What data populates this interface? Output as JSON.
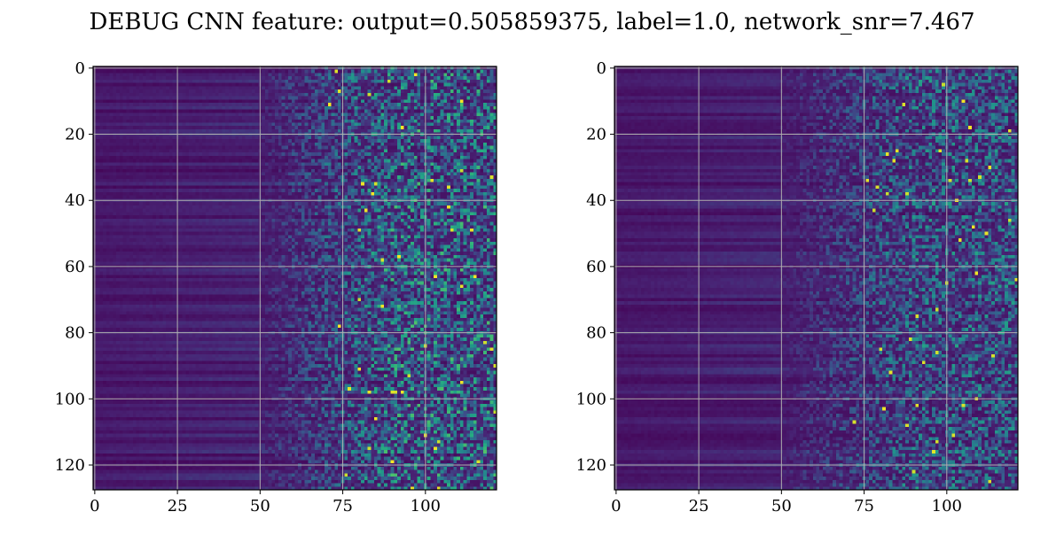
{
  "figure": {
    "title": "DEBUG CNN feature: output=0.505859375, label=1.0, network_snr=7.467"
  },
  "chart_data": [
    {
      "type": "heatmap",
      "colormap": "viridis",
      "grid": true,
      "grid_color": "#b0b0b0",
      "rows": 128,
      "cols": 122,
      "x_ticks": [
        0,
        25,
        50,
        75,
        100
      ],
      "y_ticks": [
        0,
        20,
        40,
        60,
        80,
        100,
        120
      ],
      "xlim": [
        -0.5,
        121.5
      ],
      "ylim": [
        127.5,
        -0.5
      ],
      "description_pattern": "horizontal bands of low intensity for columns 0-50, increasingly noisy high-intensity speckle for columns 50-121",
      "colors": {
        "low": "#440154",
        "mid_low": "#3b528b",
        "mid": "#21918c",
        "mid_high": "#5ec962",
        "high": "#fde725"
      }
    },
    {
      "type": "heatmap",
      "colormap": "viridis",
      "grid": true,
      "grid_color": "#b0b0b0",
      "rows": 128,
      "cols": 122,
      "x_ticks": [
        0,
        25,
        50,
        75,
        100
      ],
      "y_ticks": [
        0,
        20,
        40,
        60,
        80,
        100,
        120
      ],
      "xlim": [
        -0.5,
        121.5
      ],
      "ylim": [
        127.5,
        -0.5
      ],
      "description_pattern": "horizontal bands of low intensity for columns 0-50, moderate noisy speckle for columns 50-121",
      "colors": {
        "low": "#440154",
        "mid_low": "#3b528b",
        "mid": "#21918c",
        "mid_high": "#5ec962",
        "high": "#fde725"
      }
    }
  ]
}
